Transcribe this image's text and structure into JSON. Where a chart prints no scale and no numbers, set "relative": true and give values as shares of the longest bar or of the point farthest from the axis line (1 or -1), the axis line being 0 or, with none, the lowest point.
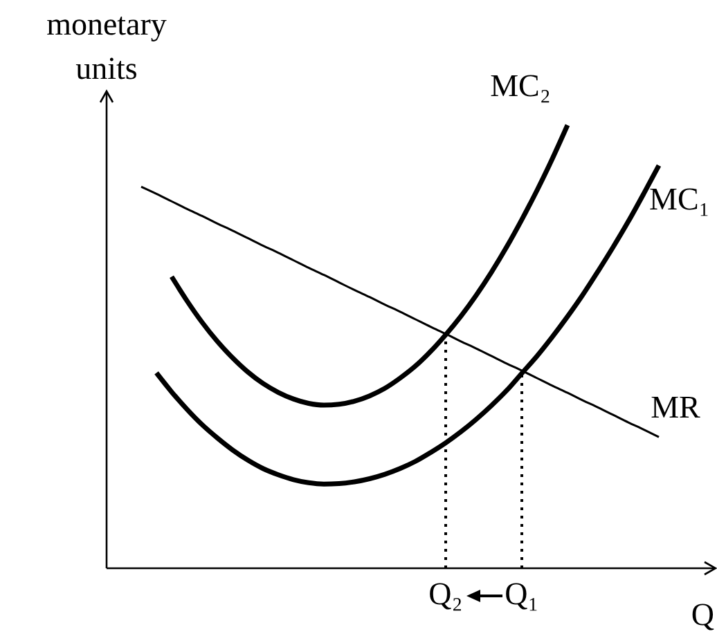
{
  "chart_data": {
    "type": "line",
    "relative": true,
    "xlabel": "Q",
    "ylabel": "monetary units",
    "categories": [
      null,
      null,
      null,
      null,
      null,
      null,
      null,
      null,
      null,
      null,
      null,
      null,
      null,
      null,
      null,
      null,
      null,
      null,
      null,
      null,
      "Q₂",
      null,
      null,
      null,
      null,
      "Q₁",
      null,
      null,
      null,
      null,
      null,
      null,
      null,
      null,
      null
    ],
    "series": [
      {
        "name": "MC₂",
        "color": "#000000",
        "values": [
          null,
          null,
          0.658,
          0.604,
          0.555,
          0.512,
          0.475,
          0.443,
          0.417,
          0.397,
          0.382,
          0.372,
          0.368,
          0.37,
          0.377,
          0.389,
          0.406,
          0.429,
          0.456,
          0.489,
          0.527,
          0.569,
          0.616,
          0.668,
          0.725,
          0.787,
          0.853,
          0.924,
          1,
          null,
          null,
          null,
          null,
          null,
          null
        ]
      },
      {
        "name": "MC₁",
        "color": "#000000",
        "values": [
          null,
          0.441,
          0.398,
          0.359,
          0.324,
          0.294,
          0.267,
          0.244,
          0.225,
          0.211,
          0.2,
          0.193,
          0.19,
          0.191,
          0.195,
          0.202,
          0.212,
          0.225,
          0.241,
          0.261,
          0.283,
          0.308,
          0.336,
          0.367,
          0.401,
          0.44,
          0.479,
          0.522,
          0.568,
          0.617,
          0.67,
          0.725,
          0.783,
          0.845,
          0.909
        ]
      },
      {
        "name": "MR",
        "color": "#000000",
        "values": [
          0.861,
          0.845,
          0.828,
          0.811,
          0.795,
          0.778,
          0.762,
          0.745,
          0.728,
          0.712,
          0.695,
          0.678,
          0.662,
          0.645,
          0.628,
          0.612,
          0.595,
          0.579,
          0.562,
          0.545,
          0.529,
          0.512,
          0.496,
          0.479,
          0.462,
          0.446,
          0.429,
          0.412,
          0.396,
          0.379,
          0.363,
          0.346,
          0.329,
          0.313,
          0.296
        ]
      },
      {
        "type": "line",
        "line_style": "dotted",
        "color": "#000000",
        "x": [
          "Q₂",
          "Q₂"
        ],
        "values": [
          0,
          0.527
        ]
      },
      {
        "type": "line",
        "line_style": "dotted",
        "color": "#000000",
        "x": [
          "Q₁",
          "Q₁"
        ],
        "values": [
          0,
          0.444
        ]
      }
    ]
  }
}
